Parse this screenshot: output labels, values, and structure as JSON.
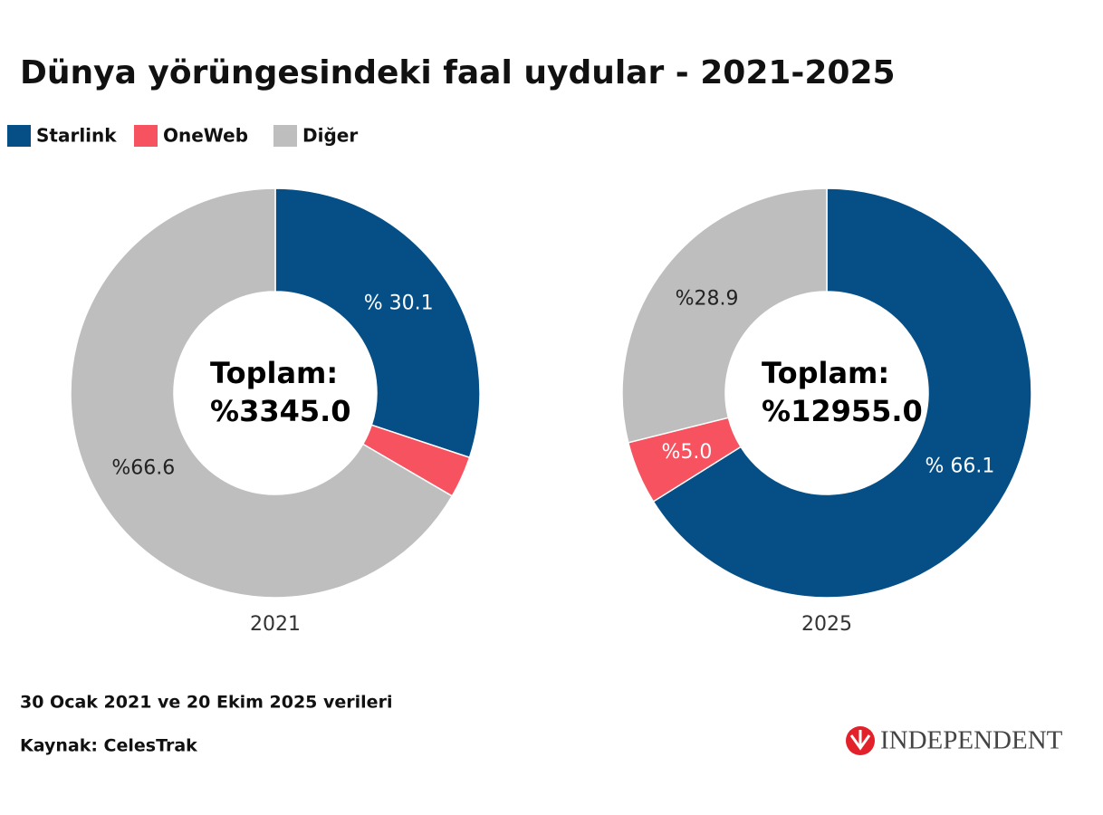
{
  "header": {
    "title": "Dünya yörüngesindeki faal uydular - 2021-2025"
  },
  "chart_data": [
    {
      "type": "donut",
      "label": "2021",
      "categories": [
        "Starlink",
        "OneWeb",
        "Diğer"
      ],
      "colors": [
        "#054f86",
        "#f6525f",
        "#bebebe"
      ],
      "values": [
        30.1,
        3.3,
        66.6
      ],
      "value_labels": [
        "% 30.1",
        null,
        "%66.6"
      ],
      "value_label_colors": [
        "#ffffff",
        "#ffffff",
        "#222222"
      ],
      "center_text": [
        "Toplam:",
        "%3345.0"
      ]
    },
    {
      "type": "donut",
      "label": "2025",
      "categories": [
        "Starlink",
        "OneWeb",
        "Diğer"
      ],
      "colors": [
        "#054f86",
        "#f6525f",
        "#bebebe"
      ],
      "values": [
        66.1,
        5.0,
        28.9
      ],
      "value_labels": [
        "% 66.1",
        "%5.0",
        "%28.9"
      ],
      "value_label_colors": [
        "#ffffff",
        "#ffffff",
        "#222222"
      ],
      "center_text": [
        "Toplam:",
        "%12955.0"
      ]
    }
  ],
  "footer": {
    "note": "30 Ocak 2021 ve 20 Ekim 2025 verileri",
    "source": "Kaynak: CelesTrak",
    "brand": "INDEPENDENT"
  }
}
